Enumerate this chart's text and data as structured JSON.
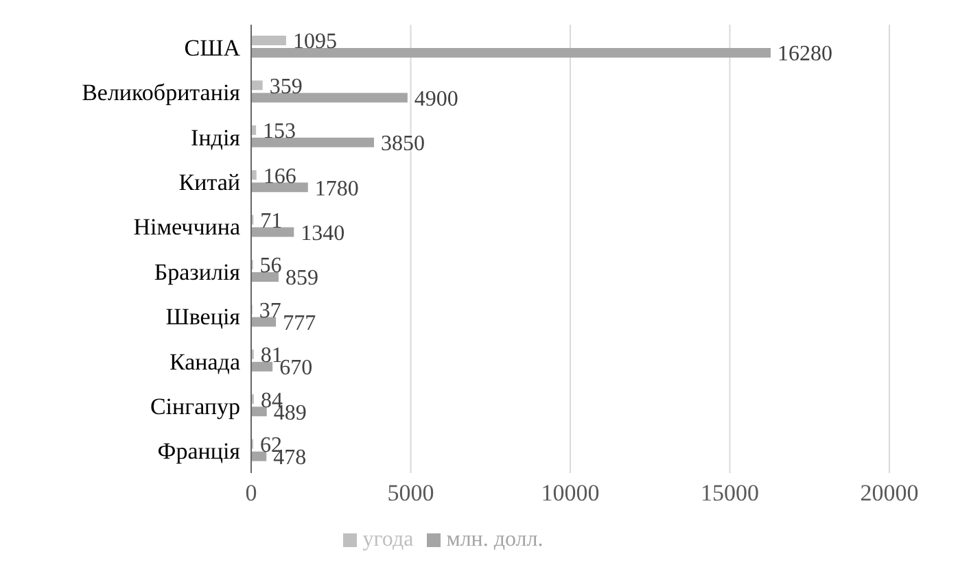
{
  "chart_data": {
    "type": "bar",
    "orientation": "horizontal",
    "categories": [
      "США",
      "Великобританія",
      "Індія",
      "Китай",
      "Німеччина",
      "Бразилія",
      "Швеція",
      "Канада",
      "Сінгапур",
      "Франція"
    ],
    "series": [
      {
        "name": "угода",
        "color": "#bfbfbf",
        "values": [
          1095,
          359,
          153,
          166,
          71,
          56,
          37,
          81,
          84,
          62
        ]
      },
      {
        "name": "млн. долл.",
        "color": "#a5a5a5",
        "values": [
          16280,
          4900,
          3850,
          1780,
          1340,
          859,
          777,
          670,
          489,
          478
        ]
      }
    ],
    "xlim": [
      0,
      20000
    ],
    "xticks": [
      0,
      5000,
      10000,
      15000,
      20000
    ],
    "grid": "x",
    "legend": "bottom",
    "data_labels": true
  }
}
